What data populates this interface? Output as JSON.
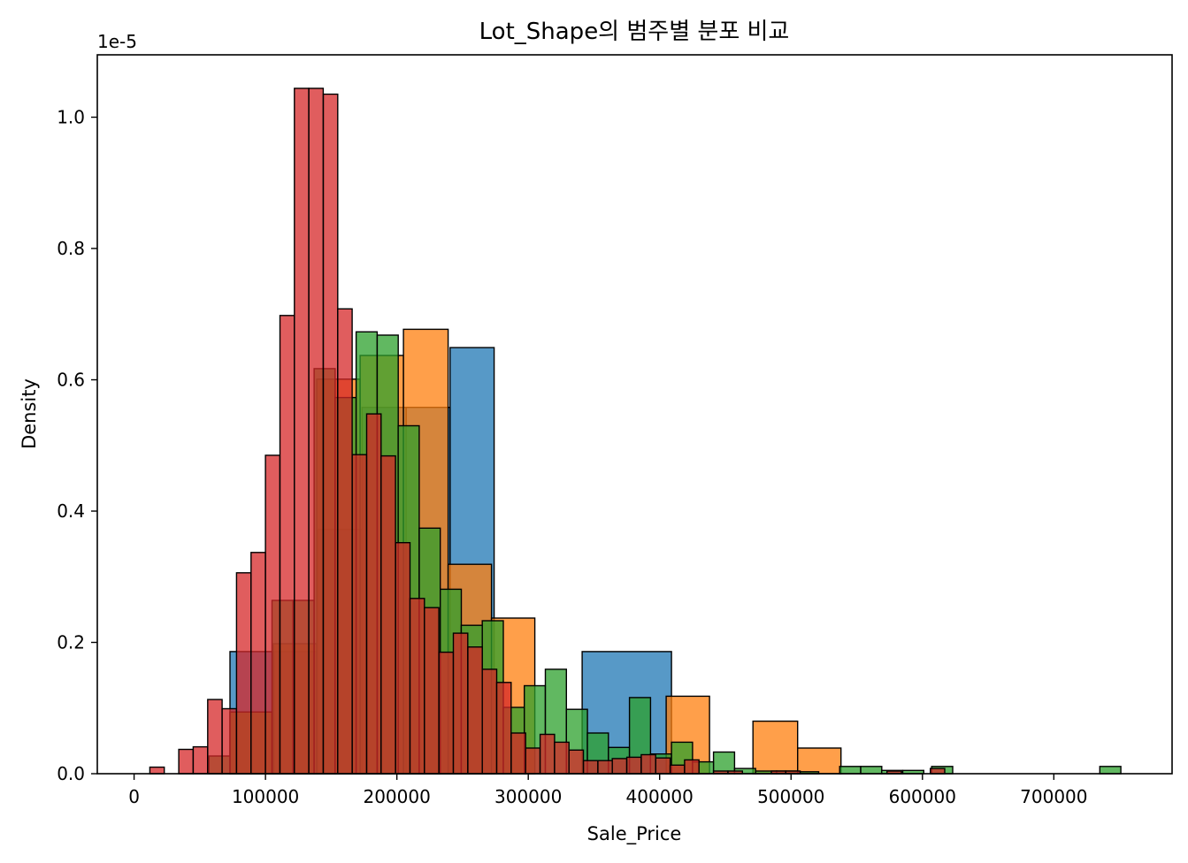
{
  "chart_data": {
    "type": "bar",
    "title": "Lot_Shape의 범주별 분포 비교",
    "xlabel": "Sale_Price",
    "ylabel": "Density",
    "offset_text": "1e-5",
    "xlim": [
      -28000,
      790000
    ],
    "ylim": [
      0,
      1.095
    ],
    "x_ticks": [
      0,
      100000,
      200000,
      300000,
      400000,
      500000,
      600000,
      700000
    ],
    "x_tick_labels": [
      "0",
      "100000",
      "200000",
      "300000",
      "400000",
      "500000",
      "600000",
      "700000"
    ],
    "y_ticks": [
      0,
      0.2,
      0.4,
      0.6,
      0.8,
      1.0
    ],
    "y_tick_labels": [
      "0.0",
      "0.2",
      "0.4",
      "0.6",
      "0.8",
      "1.0"
    ],
    "grid": false,
    "legend": "none",
    "series": [
      {
        "color": "#1f77b4",
        "edge": "#000000",
        "bins": [
          [
            73000,
            106500,
            0.186
          ],
          [
            106500,
            140000,
            0.186
          ],
          [
            140000,
            173500,
            0.372
          ],
          [
            173500,
            207000,
            0.558
          ],
          [
            207000,
            240500,
            0.558
          ],
          [
            240500,
            274000,
            0.649
          ],
          [
            274000,
            307500,
            0.0
          ],
          [
            307500,
            341000,
            0.0
          ],
          [
            341000,
            409000,
            0.186
          ]
        ]
      },
      {
        "color": "#ff7f0e",
        "edge": "#000000",
        "bins": [
          [
            73000,
            106000,
            0.094
          ],
          [
            106000,
            139000,
            0.198
          ],
          [
            139000,
            172000,
            0.601
          ],
          [
            172000,
            205000,
            0.637
          ],
          [
            205000,
            239000,
            0.677
          ],
          [
            239000,
            272000,
            0.319
          ],
          [
            272000,
            305000,
            0.237
          ],
          [
            305000,
            338000,
            0.0
          ],
          [
            338000,
            371000,
            0.0
          ],
          [
            371000,
            405000,
            0.0
          ],
          [
            405000,
            438000,
            0.118
          ],
          [
            438000,
            471000,
            0.0
          ],
          [
            471000,
            505000,
            0.08
          ],
          [
            505000,
            538000,
            0.039
          ]
        ]
      },
      {
        "color": "#2ca02c",
        "edge": "#000000",
        "bins": [
          [
            57000,
            73000,
            0.027
          ],
          [
            73000,
            89000,
            0.094
          ],
          [
            89000,
            105000,
            0.094
          ],
          [
            105000,
            121000,
            0.264
          ],
          [
            121000,
            137000,
            0.264
          ],
          [
            137000,
            153000,
            0.617
          ],
          [
            153000,
            169000,
            0.573
          ],
          [
            169000,
            185000,
            0.673
          ],
          [
            185000,
            201000,
            0.668
          ],
          [
            201000,
            217000,
            0.53
          ],
          [
            217000,
            233000,
            0.374
          ],
          [
            233000,
            249000,
            0.281
          ],
          [
            249000,
            265000,
            0.226
          ],
          [
            265000,
            281000,
            0.233
          ],
          [
            281000,
            297000,
            0.101
          ],
          [
            297000,
            313000,
            0.134
          ],
          [
            313000,
            329000,
            0.159
          ],
          [
            329000,
            345000,
            0.098
          ],
          [
            345000,
            361000,
            0.062
          ],
          [
            361000,
            377000,
            0.04
          ],
          [
            377000,
            393000,
            0.116
          ],
          [
            393000,
            409000,
            0.03
          ],
          [
            409000,
            425000,
            0.048
          ],
          [
            425000,
            441000,
            0.018
          ],
          [
            441000,
            457000,
            0.033
          ],
          [
            457000,
            473000,
            0.008
          ],
          [
            473000,
            489000,
            0.004
          ],
          [
            489000,
            505000,
            0.004
          ],
          [
            505000,
            521000,
            0.003
          ],
          [
            521000,
            537000,
            0.0
          ],
          [
            537000,
            553000,
            0.011
          ],
          [
            553000,
            569000,
            0.011
          ],
          [
            569000,
            585000,
            0.005
          ],
          [
            585000,
            601000,
            0.005
          ],
          [
            601000,
            617000,
            0.0
          ],
          [
            607000,
            623000,
            0.011
          ],
          [
            735000,
            751000,
            0.011
          ]
        ]
      },
      {
        "color": "#d62728",
        "edge": "#000000",
        "bins": [
          [
            12000,
            23000,
            0.01
          ],
          [
            34000,
            45000,
            0.037
          ],
          [
            45000,
            56000,
            0.041
          ],
          [
            56000,
            67000,
            0.113
          ],
          [
            67000,
            78000,
            0.099
          ],
          [
            78000,
            89000,
            0.306
          ],
          [
            89000,
            100000,
            0.337
          ],
          [
            100000,
            111000,
            0.485
          ],
          [
            111000,
            122000,
            0.698
          ],
          [
            122000,
            133000,
            1.044
          ],
          [
            133000,
            144000,
            1.044
          ],
          [
            144000,
            155000,
            1.035
          ],
          [
            155000,
            166000,
            0.708
          ],
          [
            166000,
            177000,
            0.486
          ],
          [
            177000,
            188000,
            0.548
          ],
          [
            188000,
            199000,
            0.484
          ],
          [
            199000,
            210000,
            0.352
          ],
          [
            210000,
            221000,
            0.267
          ],
          [
            221000,
            232000,
            0.253
          ],
          [
            232000,
            243000,
            0.185
          ],
          [
            243000,
            254000,
            0.214
          ],
          [
            254000,
            265000,
            0.193
          ],
          [
            265000,
            276000,
            0.159
          ],
          [
            276000,
            287000,
            0.139
          ],
          [
            287000,
            298000,
            0.062
          ],
          [
            298000,
            309000,
            0.039
          ],
          [
            309000,
            320000,
            0.06
          ],
          [
            320000,
            331000,
            0.048
          ],
          [
            331000,
            342000,
            0.036
          ],
          [
            342000,
            353000,
            0.02
          ],
          [
            353000,
            364000,
            0.02
          ],
          [
            364000,
            375000,
            0.023
          ],
          [
            375000,
            386000,
            0.025
          ],
          [
            386000,
            397000,
            0.029
          ],
          [
            397000,
            408000,
            0.024
          ],
          [
            408000,
            419000,
            0.013
          ],
          [
            419000,
            430000,
            0.021
          ],
          [
            441000,
            452000,
            0.004
          ],
          [
            452000,
            463000,
            0.004
          ],
          [
            485000,
            496000,
            0.004
          ],
          [
            496000,
            507000,
            0.004
          ],
          [
            573000,
            584000,
            0.004
          ],
          [
            606000,
            617000,
            0.008
          ]
        ]
      }
    ]
  }
}
